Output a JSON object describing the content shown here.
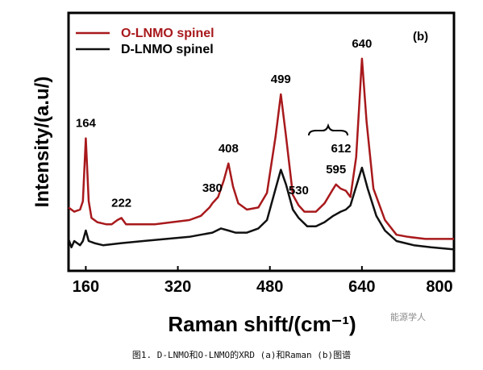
{
  "chart_data": {
    "type": "line",
    "panel_label": "(b)",
    "xlabel": "Raman shift/(cm⁻¹)",
    "ylabel": "Intensity/(a.u/)",
    "xlim": [
      130,
      800
    ],
    "ylim": [
      0,
      1
    ],
    "x_ticks": [
      160,
      320,
      480,
      640,
      800
    ],
    "y_ticks_labeled": false,
    "grid": false,
    "legend_position": "top-left",
    "bracket_label": "612",
    "series": [
      {
        "name": "O-LNMO spinel",
        "color": "#a8191c",
        "points": [
          [
            130,
            0.21
          ],
          [
            140,
            0.19
          ],
          [
            150,
            0.2
          ],
          [
            155,
            0.24
          ],
          [
            160,
            0.54
          ],
          [
            165,
            0.24
          ],
          [
            170,
            0.16
          ],
          [
            180,
            0.14
          ],
          [
            195,
            0.13
          ],
          [
            205,
            0.13
          ],
          [
            215,
            0.15
          ],
          [
            222,
            0.16
          ],
          [
            230,
            0.13
          ],
          [
            250,
            0.13
          ],
          [
            280,
            0.13
          ],
          [
            310,
            0.14
          ],
          [
            340,
            0.15
          ],
          [
            360,
            0.17
          ],
          [
            375,
            0.21
          ],
          [
            380,
            0.23
          ],
          [
            390,
            0.26
          ],
          [
            400,
            0.34
          ],
          [
            408,
            0.42
          ],
          [
            416,
            0.31
          ],
          [
            425,
            0.23
          ],
          [
            440,
            0.2
          ],
          [
            460,
            0.21
          ],
          [
            475,
            0.28
          ],
          [
            490,
            0.55
          ],
          [
            499,
            0.75
          ],
          [
            508,
            0.55
          ],
          [
            520,
            0.27
          ],
          [
            530,
            0.22
          ],
          [
            540,
            0.19
          ],
          [
            560,
            0.19
          ],
          [
            575,
            0.23
          ],
          [
            588,
            0.29
          ],
          [
            595,
            0.32
          ],
          [
            603,
            0.3
          ],
          [
            612,
            0.29
          ],
          [
            620,
            0.26
          ],
          [
            630,
            0.45
          ],
          [
            640,
            0.92
          ],
          [
            648,
            0.62
          ],
          [
            660,
            0.3
          ],
          [
            680,
            0.15
          ],
          [
            700,
            0.08
          ],
          [
            720,
            0.07
          ],
          [
            750,
            0.06
          ],
          [
            780,
            0.06
          ],
          [
            800,
            0.06
          ]
        ]
      },
      {
        "name": "D-LNMO spinel",
        "color": "#111111",
        "points": [
          [
            130,
            0.06
          ],
          [
            135,
            0.02
          ],
          [
            140,
            0.05
          ],
          [
            145,
            0.04
          ],
          [
            150,
            0.03
          ],
          [
            155,
            0.05
          ],
          [
            160,
            0.1
          ],
          [
            165,
            0.05
          ],
          [
            175,
            0.04
          ],
          [
            190,
            0.03
          ],
          [
            222,
            0.04
          ],
          [
            260,
            0.05
          ],
          [
            300,
            0.06
          ],
          [
            340,
            0.07
          ],
          [
            360,
            0.08
          ],
          [
            380,
            0.09
          ],
          [
            395,
            0.11
          ],
          [
            408,
            0.1
          ],
          [
            420,
            0.09
          ],
          [
            440,
            0.09
          ],
          [
            460,
            0.11
          ],
          [
            475,
            0.15
          ],
          [
            490,
            0.3
          ],
          [
            499,
            0.39
          ],
          [
            508,
            0.32
          ],
          [
            520,
            0.2
          ],
          [
            530,
            0.16
          ],
          [
            545,
            0.12
          ],
          [
            560,
            0.12
          ],
          [
            575,
            0.14
          ],
          [
            590,
            0.17
          ],
          [
            603,
            0.19
          ],
          [
            612,
            0.2
          ],
          [
            620,
            0.22
          ],
          [
            630,
            0.31
          ],
          [
            640,
            0.4
          ],
          [
            650,
            0.3
          ],
          [
            665,
            0.17
          ],
          [
            680,
            0.1
          ],
          [
            700,
            0.05
          ],
          [
            730,
            0.03
          ],
          [
            760,
            0.02
          ],
          [
            800,
            0.01
          ]
        ]
      }
    ],
    "annotations": [
      {
        "text": "164",
        "x": 160,
        "y": 0.54
      },
      {
        "text": "222",
        "x": 222,
        "y": 0.16
      },
      {
        "text": "380",
        "x": 380,
        "y": 0.23
      },
      {
        "text": "408",
        "x": 408,
        "y": 0.42
      },
      {
        "text": "499",
        "x": 499,
        "y": 0.75
      },
      {
        "text": "530",
        "x": 530,
        "y": 0.22
      },
      {
        "text": "595",
        "x": 595,
        "y": 0.32
      },
      {
        "text": "640",
        "x": 640,
        "y": 0.92
      }
    ]
  },
  "caption": "图1. D-LNMO和O-LNMO的XRD (a)和Raman (b)图谱",
  "watermark": "能源学人"
}
